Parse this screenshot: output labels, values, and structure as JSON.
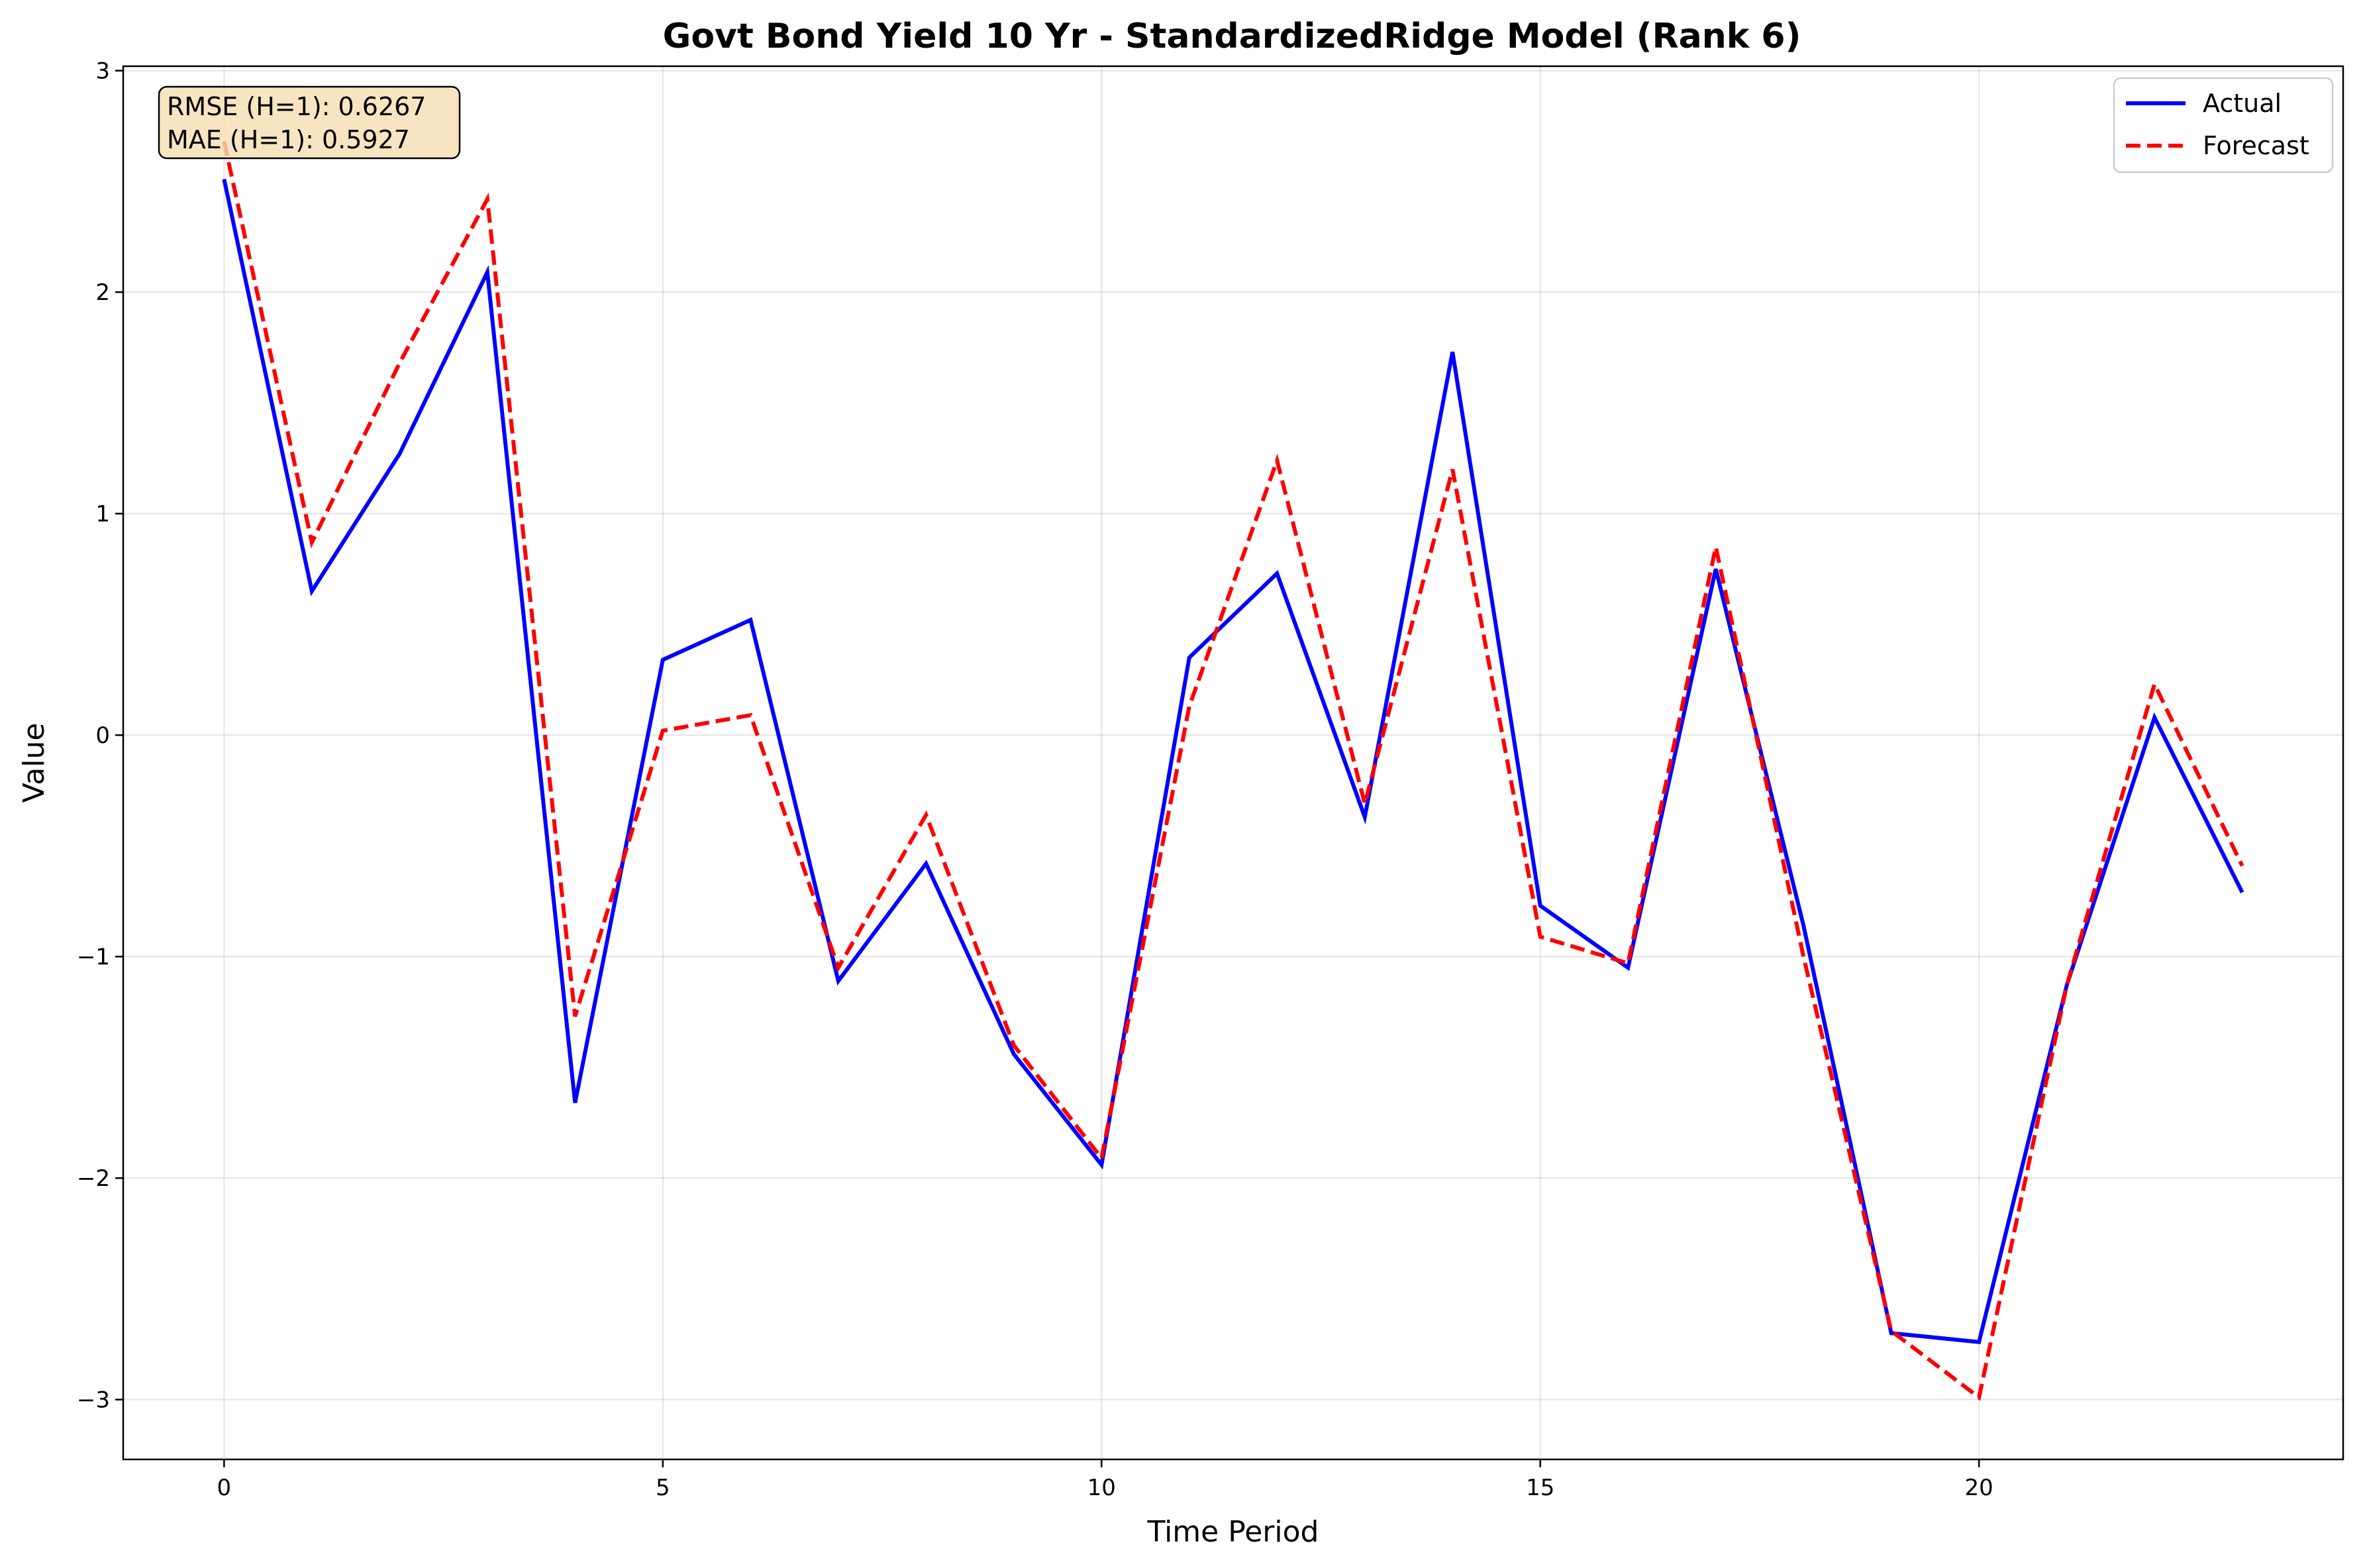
{
  "chart_data": {
    "type": "line",
    "title": "Govt Bond Yield 10 Yr - StandardizedRidge Model (Rank 6)",
    "xlabel": "Time Period",
    "ylabel": "Value",
    "xlim": [
      -1.15,
      24.15
    ],
    "ylim": [
      -3.27,
      3.02
    ],
    "xticks": [
      0,
      5,
      10,
      15,
      20
    ],
    "yticks": [
      -3,
      -2,
      -1,
      0,
      1,
      2,
      3
    ],
    "xtick_labels": [
      "0",
      "5",
      "10",
      "15",
      "20"
    ],
    "ytick_labels": [
      "−3",
      "−2",
      "−1",
      "0",
      "1",
      "2",
      "3"
    ],
    "grid": true,
    "legend_position": "top-right",
    "stats_box": {
      "line1": "RMSE (H=1): 0.6267",
      "line2": "MAE (H=1): 0.5927"
    },
    "x": [
      0,
      1,
      2,
      3,
      4,
      5,
      6,
      7,
      8,
      9,
      10,
      11,
      12,
      13,
      14,
      15,
      16,
      17,
      18,
      19,
      20,
      21,
      22,
      23
    ],
    "series": [
      {
        "name": "Actual",
        "color": "#0000ff",
        "style": "solid",
        "values": [
          2.51,
          0.65,
          1.27,
          2.09,
          -1.66,
          0.34,
          0.52,
          -1.11,
          -0.58,
          -1.44,
          -1.94,
          0.35,
          0.73,
          -0.37,
          1.73,
          -0.77,
          -1.05,
          0.75,
          -0.86,
          -2.7,
          -2.74,
          -1.13,
          0.08,
          -0.71
        ]
      },
      {
        "name": "Forecast",
        "color": "#ff0000",
        "style": "dashed",
        "values": [
          2.68,
          0.87,
          1.68,
          2.42,
          -1.27,
          0.02,
          0.09,
          -1.05,
          -0.36,
          -1.4,
          -1.91,
          0.13,
          1.24,
          -0.31,
          1.2,
          -0.91,
          -1.03,
          0.85,
          -1.0,
          -2.69,
          -2.99,
          -1.13,
          0.23,
          -0.59
        ]
      }
    ]
  }
}
